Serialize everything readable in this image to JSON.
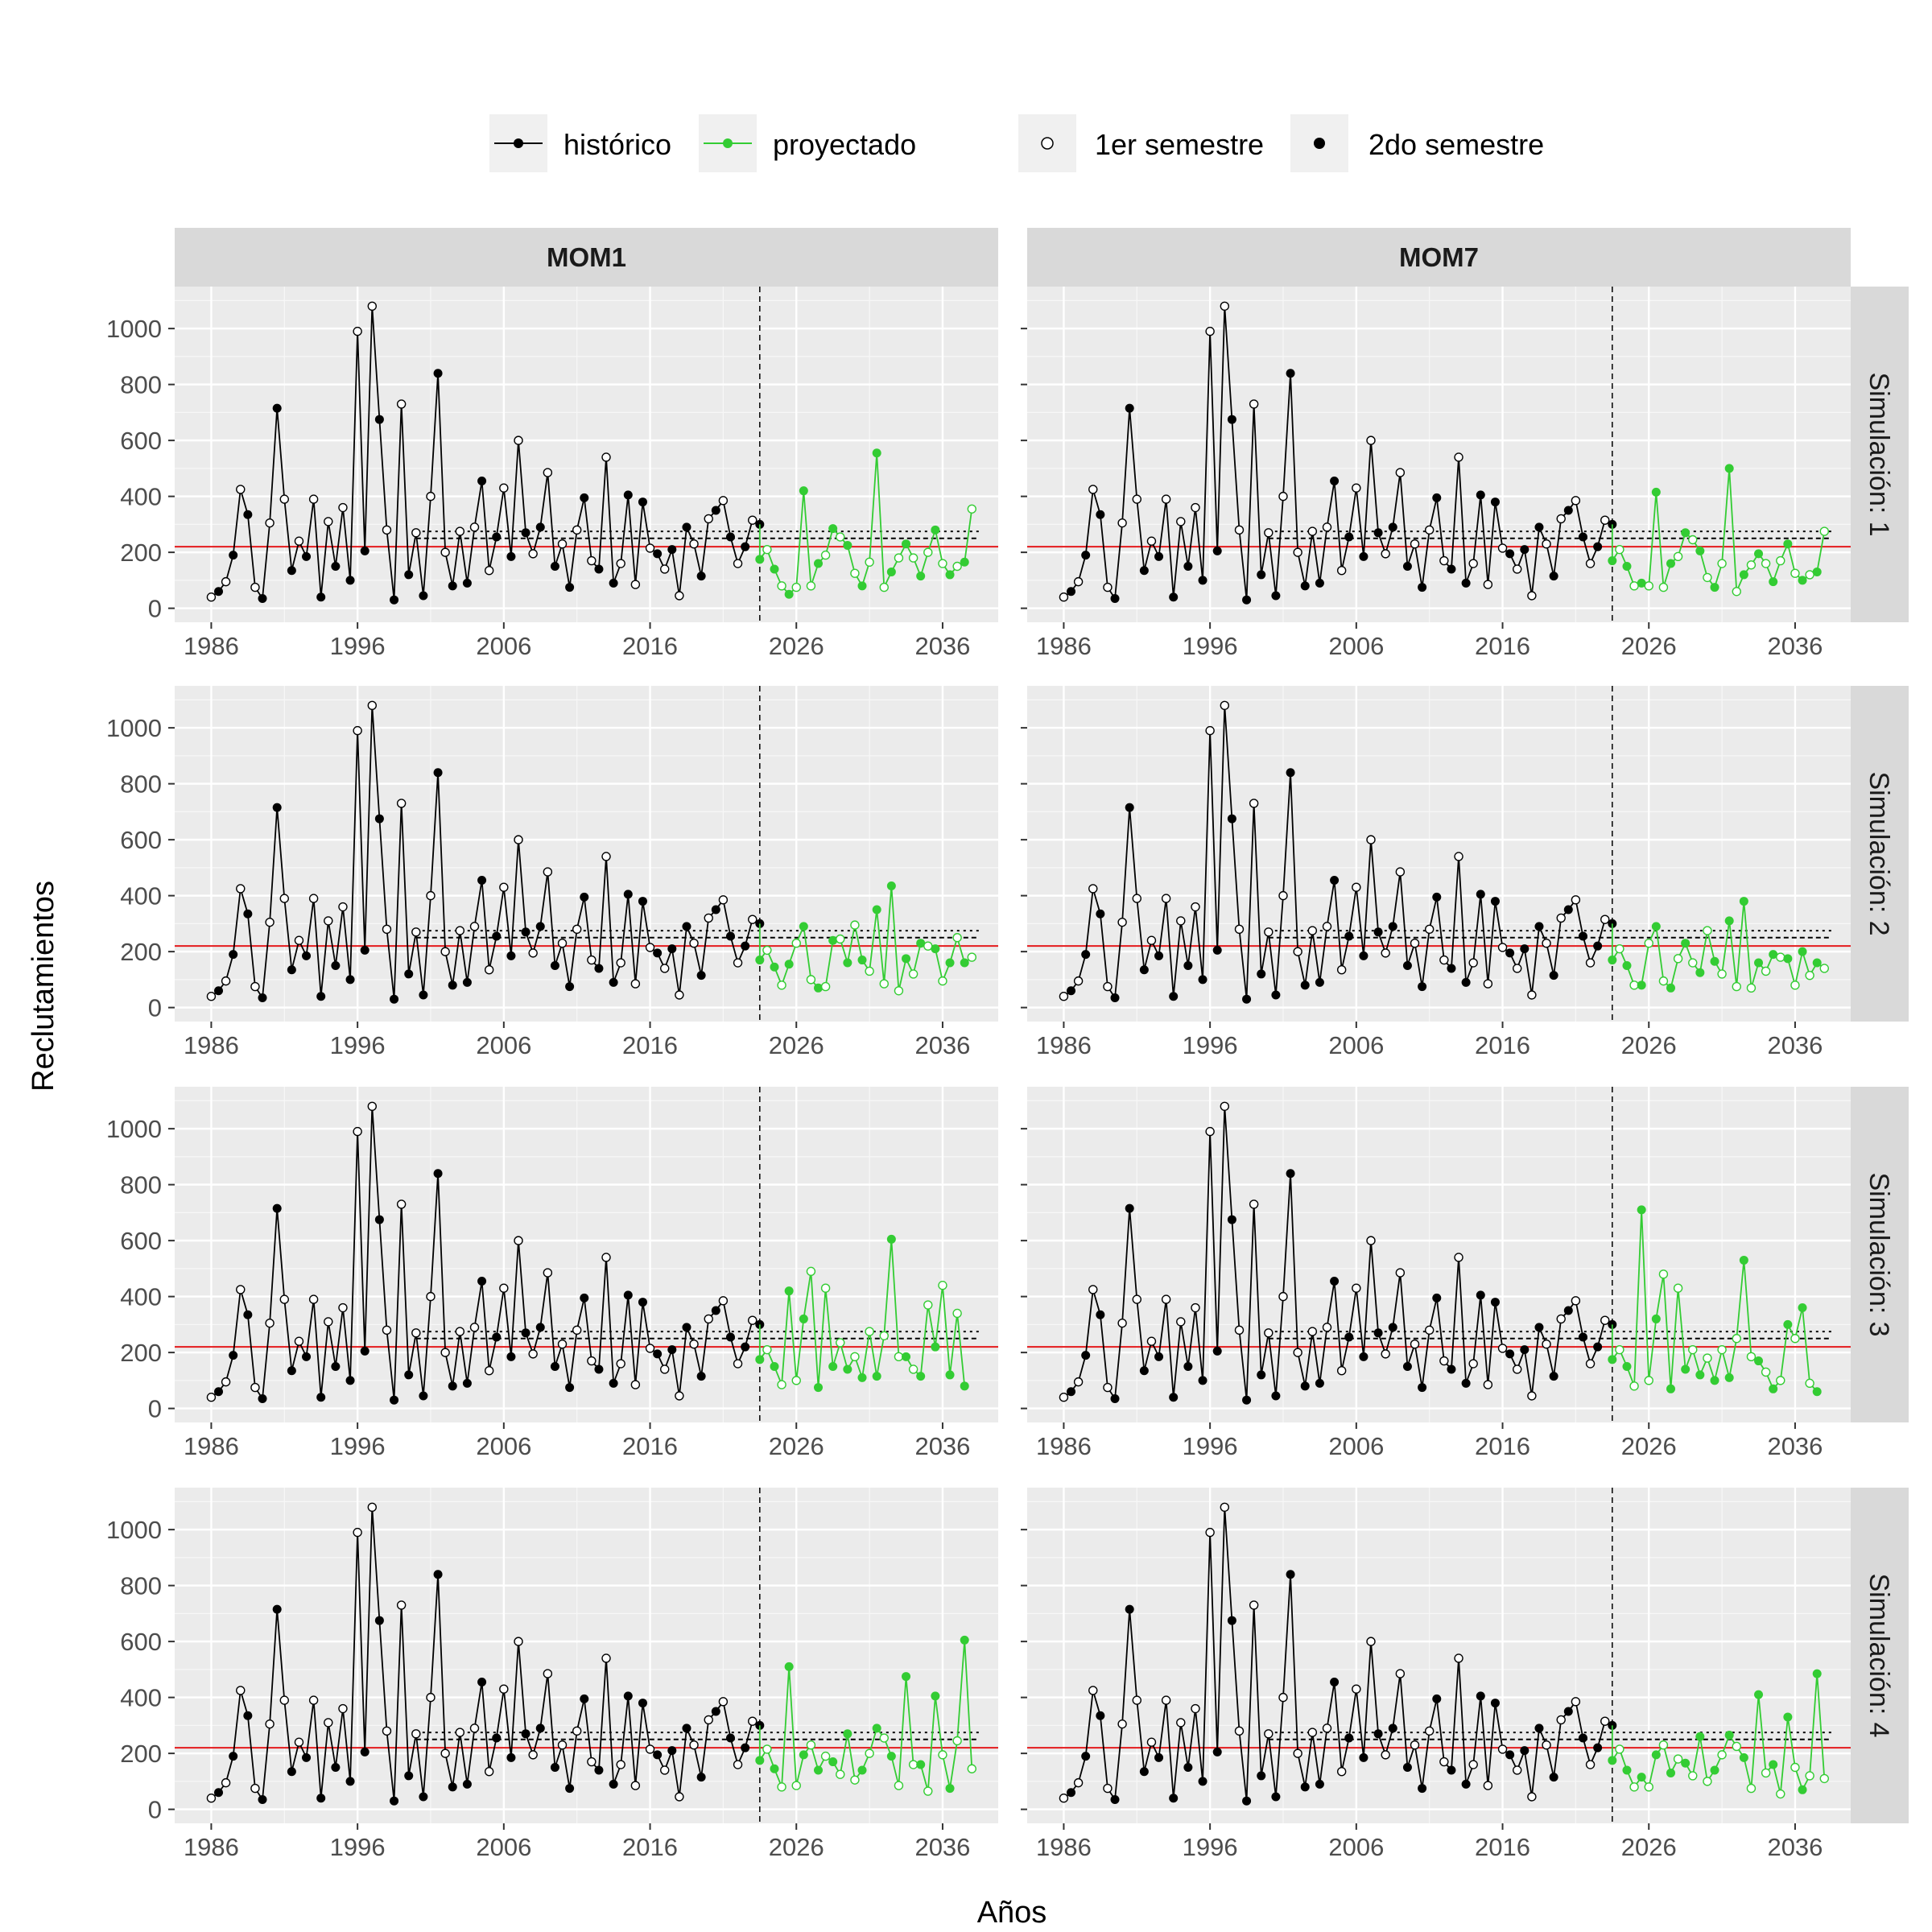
{
  "chart_data": {
    "type": "line",
    "x_label": "Años",
    "y_label": "Reclutamientos",
    "columns": [
      "MOM1",
      "MOM7"
    ],
    "rows": [
      "Simulación: 1",
      "Simulación: 2",
      "Simulación: 3",
      "Simulación: 4"
    ],
    "x_ticks": [
      1986,
      1996,
      2006,
      2016,
      2026,
      2036
    ],
    "y_ticks": [
      0,
      200,
      400,
      600,
      800,
      1000
    ],
    "xlim": [
      1983.5,
      2039.8
    ],
    "ylim": [
      -50,
      1150
    ],
    "x_start": 1986.0,
    "step": 0.5,
    "projection_start": 2023.5,
    "vline_x": 2023.5,
    "red_line_y": 220,
    "dotted_lines": {
      "x_from": 2000.0,
      "x_to": 2038.5,
      "upper": 275,
      "lower": 250
    },
    "legend": {
      "series": [
        {
          "label": "histórico",
          "color": "#000000"
        },
        {
          "label": "proyectado",
          "color": "#33cc33"
        }
      ],
      "markers": [
        {
          "label": "1er semestre",
          "fill": "open"
        },
        {
          "label": "2do semestre",
          "fill": "filled"
        }
      ]
    },
    "historical_first_point": 40,
    "historical": [
      60,
      95,
      190,
      425,
      335,
      75,
      35,
      305,
      715,
      390,
      135,
      240,
      185,
      390,
      40,
      310,
      150,
      360,
      100,
      990,
      205,
      1080,
      675,
      280,
      30,
      730,
      120,
      270,
      45,
      400,
      840,
      200,
      80,
      275,
      90,
      290,
      455,
      135,
      255,
      430,
      185,
      600,
      270,
      195,
      290,
      485,
      150,
      230,
      75,
      280,
      395,
      170,
      140,
      540,
      90,
      160,
      405,
      85,
      380,
      215,
      195,
      140,
      210,
      45,
      290,
      230,
      115,
      320,
      350,
      385,
      255,
      160,
      220,
      315,
      300
    ],
    "projections": {
      "MOM1": [
        [
          175,
          210,
          140,
          80,
          50,
          75,
          420,
          80,
          160,
          190,
          285,
          255,
          225,
          125,
          80,
          165,
          555,
          75,
          130,
          180,
          230,
          180,
          115,
          200,
          280,
          160,
          120,
          150,
          165,
          355
        ],
        [
          170,
          205,
          145,
          80,
          155,
          230,
          290,
          100,
          70,
          75,
          240,
          245,
          160,
          295,
          170,
          130,
          350,
          85,
          435,
          60,
          175,
          120,
          230,
          220,
          210,
          95,
          160,
          250,
          160,
          180
        ],
        [
          175,
          210,
          150,
          85,
          420,
          100,
          320,
          490,
          75,
          430,
          150,
          235,
          140,
          185,
          110,
          275,
          115,
          260,
          605,
          185,
          185,
          140,
          115,
          370,
          220,
          440,
          120,
          340,
          80
        ]
      ],
      "MOM7": [
        [
          170,
          210,
          150,
          80,
          90,
          80,
          415,
          75,
          160,
          185,
          270,
          245,
          205,
          110,
          75,
          160,
          500,
          60,
          120,
          155,
          195,
          160,
          95,
          170,
          230,
          125,
          100,
          120,
          130,
          275
        ],
        [
          170,
          210,
          150,
          80,
          80,
          230,
          290,
          95,
          70,
          175,
          230,
          160,
          125,
          275,
          165,
          120,
          310,
          75,
          380,
          70,
          160,
          130,
          190,
          180,
          175,
          80,
          200,
          115,
          160,
          140
        ],
        [
          175,
          210,
          150,
          80,
          710,
          100,
          320,
          480,
          70,
          430,
          140,
          210,
          120,
          180,
          100,
          210,
          110,
          250,
          530,
          185,
          170,
          130,
          70,
          100,
          300,
          250,
          360,
          90,
          60
        ]
      ]
    },
    "projection_sim4": [
      175,
      215,
      145,
      80,
      510,
      85,
      195,
      230,
      140,
      190,
      170,
      125,
      270,
      105,
      140,
      200,
      290,
      255,
      190,
      85,
      475,
      160,
      160,
      65,
      405,
      195,
      75,
      245,
      605,
      145
    ],
    "projection_sim4_mom7": [
      175,
      215,
      140,
      80,
      115,
      80,
      195,
      230,
      130,
      180,
      165,
      120,
      260,
      100,
      140,
      195,
      265,
      225,
      185,
      75,
      410,
      130,
      160,
      55,
      330,
      150,
      70,
      120,
      485,
      110
    ]
  }
}
